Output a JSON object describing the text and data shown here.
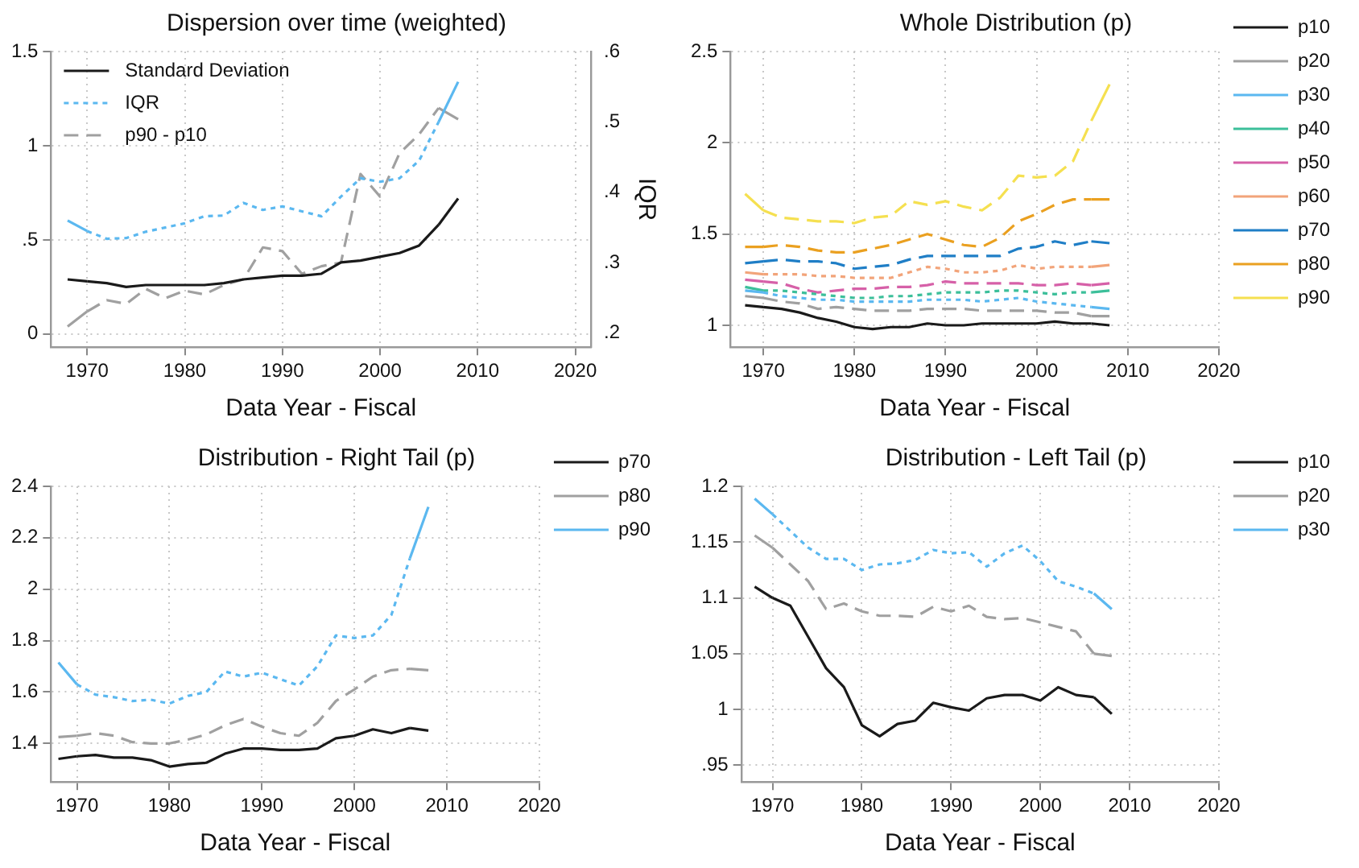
{
  "chart_data": [
    {
      "type": "line",
      "title": "Dispersion over time (weighted)",
      "xlabel": "Data Year - Fiscal",
      "y2label": "IQR",
      "grid": true,
      "legend": "top left",
      "x": [
        1968,
        1970,
        1972,
        1974,
        1976,
        1978,
        1980,
        1982,
        1984,
        1986,
        1988,
        1990,
        1992,
        1994,
        1996,
        1998,
        2000,
        2002,
        2004,
        2006,
        2008
      ],
      "series": [
        {
          "name": "Standard Deviation",
          "color": "#1a1a1a",
          "line_style": "solid",
          "values": [
            0.29,
            0.28,
            0.27,
            0.25,
            0.26,
            0.26,
            0.26,
            0.26,
            0.27,
            0.29,
            0.3,
            0.31,
            0.31,
            0.32,
            0.38,
            0.39,
            0.41,
            0.43,
            0.47,
            0.58,
            0.72
          ]
        },
        {
          "name": "IQR",
          "color": "#5bb8f0",
          "line_style": "dotted",
          "axis": "y2",
          "values": [
            0.36,
            0.345,
            0.334,
            0.335,
            0.344,
            0.35,
            0.356,
            0.366,
            0.367,
            0.385,
            0.375,
            0.38,
            0.373,
            0.366,
            0.394,
            0.42,
            0.415,
            0.42,
            0.445,
            0.5,
            0.557
          ]
        },
        {
          "name": "p90 - p10",
          "color": "#a0a0a0",
          "line_style": "dashed",
          "values": [
            0.04,
            0.12,
            0.18,
            0.16,
            0.24,
            0.19,
            0.23,
            0.21,
            0.26,
            0.29,
            0.46,
            0.44,
            0.32,
            0.36,
            0.38,
            0.85,
            0.73,
            0.96,
            1.06,
            1.2,
            1.14
          ]
        }
      ],
      "xlim": [
        1966.3,
        2021.6
      ],
      "xticks": [
        1970,
        1980,
        1990,
        2000,
        2010,
        2020
      ],
      "ylim": [
        -0.07,
        1.5
      ],
      "yticks": [
        0,
        {
          "value": 0.5,
          "label": ".5"
        },
        1,
        1.5
      ],
      "y2lim": [
        0.18,
        0.6
      ],
      "y2ticks": [
        {
          "value": 0.2,
          "label": ".2"
        },
        {
          "value": 0.3,
          "label": ".3"
        },
        {
          "value": 0.4,
          "label": ".4"
        },
        {
          "value": 0.5,
          "label": ".5"
        },
        {
          "value": 0.6,
          "label": ".6"
        }
      ]
    },
    {
      "type": "line",
      "title": "Whole Distribution (p)",
      "xlabel": "Data Year - Fiscal",
      "grid": true,
      "legend": "right",
      "x": [
        1968,
        1970,
        1972,
        1974,
        1976,
        1978,
        1980,
        1982,
        1984,
        1986,
        1988,
        1990,
        1992,
        1994,
        1996,
        1998,
        2000,
        2002,
        2004,
        2006,
        2008
      ],
      "series": [
        {
          "name": "p10",
          "color": "#1a1a1a",
          "line_style": "solid",
          "values": [
            1.11,
            1.1,
            1.09,
            1.07,
            1.04,
            1.02,
            0.99,
            0.98,
            0.99,
            0.99,
            1.01,
            1,
            1,
            1.01,
            1.01,
            1.01,
            1.01,
            1.02,
            1.01,
            1.01,
            1
          ]
        },
        {
          "name": "p20",
          "color": "#a0a0a0",
          "line_style": "dashed",
          "values": [
            1.16,
            1.15,
            1.13,
            1.12,
            1.09,
            1.1,
            1.09,
            1.08,
            1.08,
            1.08,
            1.09,
            1.09,
            1.09,
            1.08,
            1.08,
            1.08,
            1.08,
            1.07,
            1.07,
            1.05,
            1.05
          ]
        },
        {
          "name": "p30",
          "color": "#5bb8f0",
          "line_style": "dotted",
          "values": [
            1.19,
            1.18,
            1.16,
            1.15,
            1.14,
            1.14,
            1.13,
            1.13,
            1.13,
            1.13,
            1.14,
            1.14,
            1.14,
            1.13,
            1.14,
            1.15,
            1.13,
            1.12,
            1.11,
            1.1,
            1.09
          ]
        },
        {
          "name": "p40",
          "color": "#3cbf9a",
          "line_style": "dotted",
          "values": [
            1.21,
            1.19,
            1.19,
            1.18,
            1.17,
            1.16,
            1.15,
            1.15,
            1.16,
            1.16,
            1.17,
            1.18,
            1.18,
            1.18,
            1.19,
            1.19,
            1.18,
            1.17,
            1.18,
            1.18,
            1.19
          ]
        },
        {
          "name": "p50",
          "color": "#d660a8",
          "line_style": "dashed",
          "values": [
            1.25,
            1.24,
            1.23,
            1.2,
            1.18,
            1.19,
            1.2,
            1.2,
            1.21,
            1.21,
            1.22,
            1.24,
            1.23,
            1.23,
            1.23,
            1.23,
            1.22,
            1.22,
            1.23,
            1.22,
            1.23
          ]
        },
        {
          "name": "p60",
          "color": "#f2a47a",
          "line_style": "dotted",
          "values": [
            1.29,
            1.28,
            1.28,
            1.28,
            1.27,
            1.27,
            1.26,
            1.26,
            1.26,
            1.29,
            1.32,
            1.31,
            1.29,
            1.29,
            1.3,
            1.33,
            1.31,
            1.32,
            1.32,
            1.32,
            1.33
          ]
        },
        {
          "name": "p70",
          "color": "#1f7ec6",
          "line_style": "dashed",
          "values": [
            1.34,
            1.35,
            1.36,
            1.35,
            1.35,
            1.34,
            1.31,
            1.32,
            1.33,
            1.36,
            1.38,
            1.38,
            1.38,
            1.38,
            1.38,
            1.42,
            1.43,
            1.46,
            1.44,
            1.46,
            1.45
          ]
        },
        {
          "name": "p80",
          "color": "#eaa020",
          "line_style": "dashed",
          "values": [
            1.43,
            1.43,
            1.44,
            1.43,
            1.41,
            1.4,
            1.4,
            1.42,
            1.44,
            1.47,
            1.5,
            1.47,
            1.44,
            1.43,
            1.48,
            1.57,
            1.61,
            1.66,
            1.69,
            1.69,
            1.69
          ]
        },
        {
          "name": "p90",
          "color": "#f5e050",
          "line_style": "dashed",
          "values": [
            1.72,
            1.63,
            1.59,
            1.58,
            1.57,
            1.57,
            1.56,
            1.59,
            1.6,
            1.68,
            1.66,
            1.68,
            1.65,
            1.63,
            1.7,
            1.82,
            1.81,
            1.82,
            1.9,
            2.12,
            2.32
          ]
        }
      ],
      "xlim": [
        1966.4,
        2020
      ],
      "xticks": [
        1970,
        1980,
        1990,
        2000,
        2010,
        2020
      ],
      "ylim": [
        0.88,
        2.5
      ],
      "yticks": [
        1,
        1.5,
        2,
        2.5
      ]
    },
    {
      "type": "line",
      "title": "Distribution - Right Tail (p)",
      "xlabel": "Data Year - Fiscal",
      "grid": true,
      "legend": "right",
      "x": [
        1968,
        1970,
        1972,
        1974,
        1976,
        1978,
        1980,
        1982,
        1984,
        1986,
        1988,
        1990,
        1992,
        1994,
        1996,
        1998,
        2000,
        2002,
        2004,
        2006,
        2008
      ],
      "series": [
        {
          "name": "p70",
          "color": "#1a1a1a",
          "line_style": "solid",
          "values": [
            1.34,
            1.35,
            1.355,
            1.345,
            1.345,
            1.335,
            1.31,
            1.32,
            1.325,
            1.36,
            1.38,
            1.38,
            1.375,
            1.375,
            1.38,
            1.42,
            1.43,
            1.455,
            1.44,
            1.46,
            1.45
          ]
        },
        {
          "name": "p80",
          "color": "#a0a0a0",
          "line_style": "dashed",
          "values": [
            1.425,
            1.43,
            1.44,
            1.43,
            1.405,
            1.4,
            1.4,
            1.415,
            1.435,
            1.47,
            1.495,
            1.465,
            1.44,
            1.43,
            1.48,
            1.565,
            1.61,
            1.66,
            1.685,
            1.69,
            1.685
          ]
        },
        {
          "name": "p90",
          "color": "#5bb8f0",
          "line_style": "dotted",
          "values": [
            1.715,
            1.63,
            1.59,
            1.58,
            1.565,
            1.57,
            1.555,
            1.585,
            1.6,
            1.68,
            1.66,
            1.675,
            1.65,
            1.625,
            1.7,
            1.82,
            1.81,
            1.82,
            1.9,
            2.12,
            2.32
          ]
        }
      ],
      "xlim": [
        1967.2,
        2020
      ],
      "xticks": [
        1970,
        1980,
        1990,
        2000,
        2010,
        2020
      ],
      "ylim": [
        1.25,
        2.4
      ],
      "yticks": [
        1.4,
        1.6,
        1.8,
        2,
        2.2,
        2.4
      ]
    },
    {
      "type": "line",
      "title": "Distribution - Left Tail (p)",
      "xlabel": "Data Year - Fiscal",
      "grid": true,
      "legend": "right",
      "x": [
        1968,
        1970,
        1972,
        1974,
        1976,
        1978,
        1980,
        1982,
        1984,
        1986,
        1988,
        1990,
        1992,
        1994,
        1996,
        1998,
        2000,
        2002,
        2004,
        2006,
        2008
      ],
      "series": [
        {
          "name": "p10",
          "color": "#1a1a1a",
          "line_style": "solid",
          "values": [
            1.11,
            1.1,
            1.093,
            1.065,
            1.037,
            1.02,
            0.986,
            0.976,
            0.987,
            0.99,
            1.006,
            1.002,
            0.999,
            1.01,
            1.013,
            1.013,
            1.008,
            1.02,
            1.013,
            1.011,
            0.996
          ]
        },
        {
          "name": "p20",
          "color": "#a0a0a0",
          "line_style": "dashed",
          "values": [
            1.156,
            1.145,
            1.13,
            1.115,
            1.09,
            1.095,
            1.088,
            1.084,
            1.084,
            1.083,
            1.092,
            1.088,
            1.093,
            1.083,
            1.081,
            1.082,
            1.078,
            1.074,
            1.07,
            1.05,
            1.048
          ]
        },
        {
          "name": "p30",
          "color": "#5bb8f0",
          "line_style": "dotted",
          "values": [
            1.189,
            1.175,
            1.16,
            1.145,
            1.135,
            1.135,
            1.125,
            1.13,
            1.131,
            1.134,
            1.143,
            1.14,
            1.141,
            1.128,
            1.14,
            1.147,
            1.133,
            1.115,
            1.11,
            1.104,
            1.09
          ]
        }
      ],
      "xlim": [
        1966.5,
        2020
      ],
      "xticks": [
        1970,
        1980,
        1990,
        2000,
        2010,
        2020
      ],
      "ylim": [
        0.935,
        1.2
      ],
      "yticks": [
        {
          "value": 0.95,
          "label": ".95"
        },
        1,
        1.05,
        1.1,
        1.15,
        1.2
      ]
    }
  ]
}
